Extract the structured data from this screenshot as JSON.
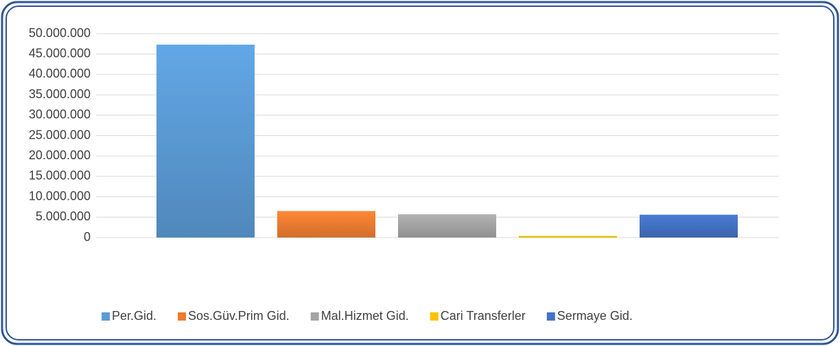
{
  "chart_data": {
    "type": "bar",
    "categories": [
      null
    ],
    "series": [
      {
        "name": "Per.Gid.",
        "color": "#5b9bd5",
        "values": [
          47300000
        ]
      },
      {
        "name": "Sos.Güv.Prim Gid.",
        "color": "#ed7d31",
        "values": [
          6500000
        ]
      },
      {
        "name": "Mal.Hizmet Gid.",
        "color": "#a5a5a5",
        "values": [
          5700000
        ]
      },
      {
        "name": "Cari Transferler",
        "color": "#ffc000",
        "values": [
          400000
        ]
      },
      {
        "name": "Sermaye Gid.",
        "color": "#4472c4",
        "values": [
          5600000
        ]
      }
    ],
    "ylim": [
      0,
      50000000
    ],
    "yticks": [
      0,
      {
        "value": 5000000,
        "label": "5.000.000"
      },
      {
        "value": 10000000,
        "label": "10.000.000"
      },
      {
        "value": 15000000,
        "label": "15.000.000"
      },
      {
        "value": 20000000,
        "label": "20.000.000"
      },
      {
        "value": 25000000,
        "label": "25.000.000"
      },
      {
        "value": 30000000,
        "label": "30.000.000"
      },
      {
        "value": 35000000,
        "label": "35.000.000"
      },
      {
        "value": 40000000,
        "label": "40.000.000"
      },
      {
        "value": 45000000,
        "label": "45.000.000"
      },
      {
        "value": 50000000,
        "label": "50.000.000"
      }
    ],
    "grid": true,
    "legend": "bottom"
  }
}
